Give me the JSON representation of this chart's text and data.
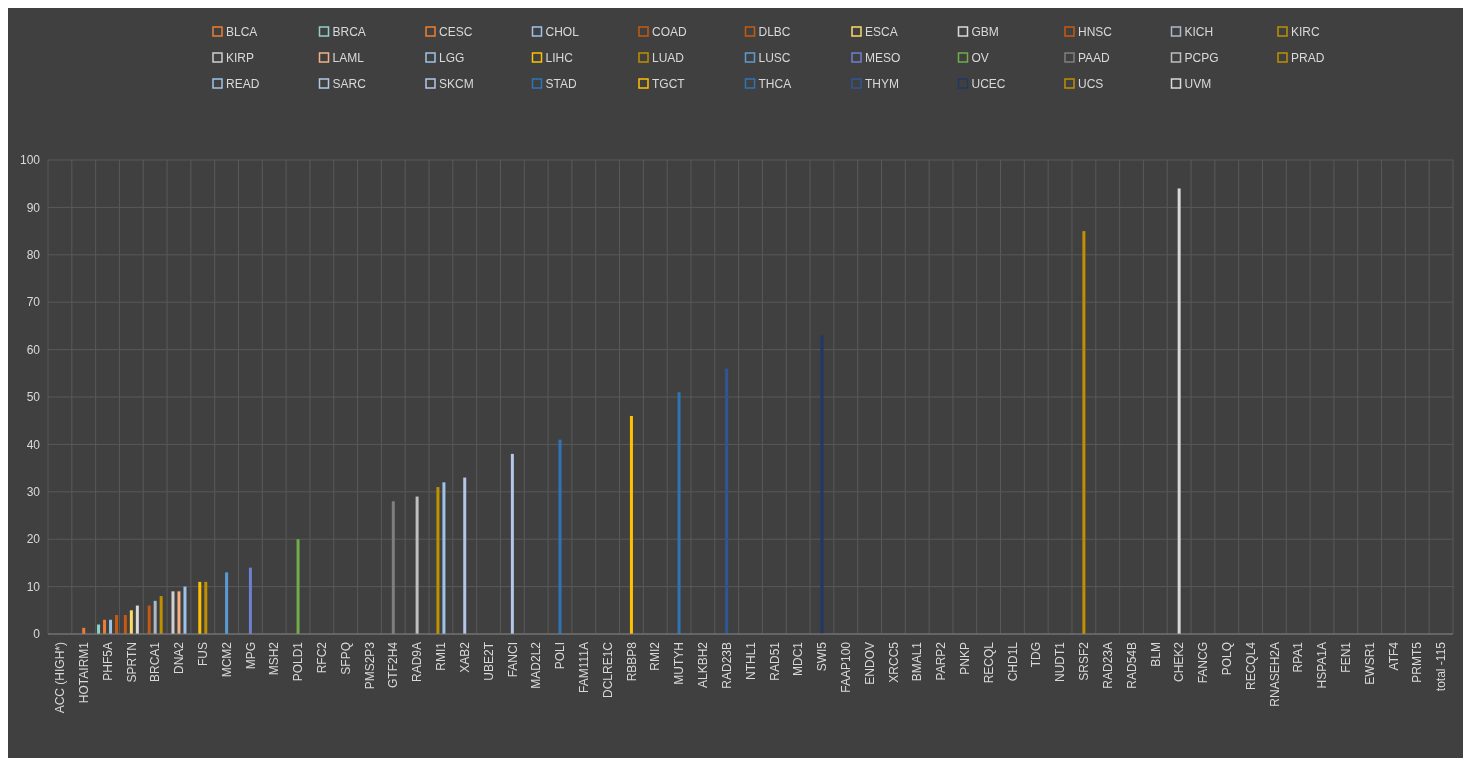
{
  "chart_data": {
    "type": "bar",
    "categories": [
      "ACC (HIGH*)",
      "HOTAIRM1",
      "PHF5A",
      "SPRTN",
      "BRCA1",
      "DNA2",
      "FUS",
      "MCM2",
      "MPG",
      "MSH2",
      "POLD1",
      "RFC2",
      "SFPQ",
      "PMS2P3",
      "GTF2H4",
      "RAD9A",
      "RMI1",
      "XAB2",
      "UBE2T",
      "FANCI",
      "MAD2L2",
      "POLI",
      "FAM111A",
      "DCLRE1C",
      "RBBP8",
      "RMI2",
      "MUTYH",
      "ALKBH2",
      "RAD23B",
      "NTHL1",
      "RAD51",
      "MDC1",
      "SWI5",
      "FAAP100",
      "ENDOV",
      "XRCC5",
      "BMAL1",
      "PARP2",
      "PNKP",
      "RECQL",
      "CHD1L",
      "TDG",
      "NUDT1",
      "SRSF2",
      "RAD23A",
      "RAD54B",
      "BLM",
      "CHEK2",
      "FANCG",
      "POLQ",
      "RECQL4",
      "RNASEH2A",
      "RPA1",
      "HSPA1A",
      "FEN1",
      "EWSR1",
      "ATF4",
      "PRMT5",
      "total -115"
    ],
    "ylim": [
      0,
      100
    ],
    "yticks": [
      0,
      10,
      20,
      30,
      40,
      50,
      60,
      70,
      80,
      90,
      100
    ],
    "grid": true,
    "legend": "top",
    "series": [
      {
        "name": "BLCA",
        "color": "#ed7d31",
        "values": [
          null,
          1.3,
          null,
          null,
          null,
          null,
          null,
          null,
          null,
          null,
          null,
          null,
          null,
          null,
          null,
          null,
          null,
          null,
          null,
          null,
          null,
          null,
          null,
          null,
          null,
          null,
          null,
          null,
          null,
          null,
          null,
          null,
          null,
          null,
          null,
          null,
          null,
          null,
          null,
          null,
          null,
          null,
          null,
          null,
          null,
          null,
          null,
          null,
          null,
          null,
          null,
          null,
          null,
          null,
          null,
          null,
          null,
          null,
          null
        ]
      },
      {
        "name": "BRCA",
        "color": "#8fd0c8",
        "values": [
          null,
          null,
          2,
          null,
          null,
          null,
          null,
          null,
          null,
          null,
          null,
          null,
          null,
          null,
          null,
          null,
          null,
          null,
          null,
          null,
          null,
          null,
          null,
          null,
          null,
          null,
          null,
          null,
          null,
          null,
          null,
          null,
          null,
          null,
          null,
          null,
          null,
          null,
          null,
          null,
          null,
          null,
          null,
          null,
          null,
          null,
          null,
          null,
          null,
          null,
          null,
          null,
          null,
          null,
          null,
          null,
          null,
          null,
          null
        ]
      },
      {
        "name": "CESC",
        "color": "#ed7d31",
        "values": [
          null,
          null,
          3,
          null,
          null,
          null,
          null,
          null,
          null,
          null,
          null,
          null,
          null,
          null,
          null,
          null,
          null,
          null,
          null,
          null,
          null,
          null,
          null,
          null,
          null,
          null,
          null,
          null,
          null,
          null,
          null,
          null,
          null,
          null,
          null,
          null,
          null,
          null,
          null,
          null,
          null,
          null,
          null,
          null,
          null,
          null,
          null,
          null,
          null,
          null,
          null,
          null,
          null,
          null,
          null,
          null,
          null,
          null,
          null
        ]
      },
      {
        "name": "CHOL",
        "color": "#9dc3e6",
        "values": [
          null,
          null,
          3,
          null,
          null,
          null,
          null,
          null,
          null,
          null,
          null,
          null,
          null,
          null,
          null,
          null,
          null,
          null,
          null,
          null,
          null,
          null,
          null,
          null,
          null,
          null,
          null,
          null,
          null,
          null,
          null,
          null,
          null,
          null,
          null,
          null,
          null,
          null,
          null,
          null,
          null,
          null,
          null,
          null,
          null,
          null,
          null,
          null,
          null,
          null,
          null,
          null,
          null,
          null,
          null,
          null,
          null,
          null,
          null
        ]
      },
      {
        "name": "COAD",
        "color": "#c55a11",
        "values": [
          null,
          null,
          4,
          null,
          null,
          null,
          null,
          null,
          null,
          null,
          null,
          null,
          null,
          null,
          null,
          null,
          null,
          null,
          null,
          null,
          null,
          null,
          null,
          null,
          null,
          null,
          null,
          null,
          null,
          null,
          null,
          null,
          null,
          null,
          null,
          null,
          null,
          null,
          null,
          null,
          null,
          null,
          null,
          null,
          null,
          null,
          null,
          null,
          null,
          null,
          null,
          null,
          null,
          null,
          null,
          null,
          null,
          null,
          null
        ]
      },
      {
        "name": "DLBC",
        "color": "#c55a11",
        "values": [
          null,
          null,
          null,
          4,
          null,
          null,
          null,
          null,
          null,
          null,
          null,
          null,
          null,
          null,
          null,
          null,
          null,
          null,
          null,
          null,
          null,
          null,
          null,
          null,
          null,
          null,
          null,
          null,
          null,
          null,
          null,
          null,
          null,
          null,
          null,
          null,
          null,
          null,
          null,
          null,
          null,
          null,
          null,
          null,
          null,
          null,
          null,
          null,
          null,
          null,
          null,
          null,
          null,
          null,
          null,
          null,
          null,
          null,
          null
        ]
      },
      {
        "name": "ESCA",
        "color": "#ffd966",
        "values": [
          null,
          null,
          null,
          5,
          null,
          null,
          null,
          null,
          null,
          null,
          null,
          null,
          null,
          null,
          null,
          null,
          null,
          null,
          null,
          null,
          null,
          null,
          null,
          null,
          null,
          null,
          null,
          null,
          null,
          null,
          null,
          null,
          null,
          null,
          null,
          null,
          null,
          null,
          null,
          null,
          null,
          null,
          null,
          null,
          null,
          null,
          null,
          null,
          null,
          null,
          null,
          null,
          null,
          null,
          null,
          null,
          null,
          null,
          null
        ]
      },
      {
        "name": "GBM",
        "color": "#d9d9d9",
        "values": [
          null,
          null,
          null,
          6,
          null,
          null,
          null,
          null,
          null,
          null,
          null,
          null,
          null,
          null,
          null,
          null,
          null,
          null,
          null,
          null,
          null,
          null,
          null,
          null,
          null,
          null,
          null,
          null,
          null,
          null,
          null,
          null,
          null,
          null,
          null,
          null,
          null,
          null,
          null,
          null,
          null,
          null,
          null,
          null,
          null,
          null,
          null,
          null,
          null,
          null,
          null,
          null,
          null,
          null,
          null,
          null,
          null,
          null,
          null
        ]
      },
      {
        "name": "HNSC",
        "color": "#c55a11",
        "values": [
          null,
          null,
          null,
          null,
          6,
          null,
          null,
          null,
          null,
          null,
          null,
          null,
          null,
          null,
          null,
          null,
          null,
          null,
          null,
          null,
          null,
          null,
          null,
          null,
          null,
          null,
          null,
          null,
          null,
          null,
          null,
          null,
          null,
          null,
          null,
          null,
          null,
          null,
          null,
          null,
          null,
          null,
          null,
          null,
          null,
          null,
          null,
          null,
          null,
          null,
          null,
          null,
          null,
          null,
          null,
          null,
          null,
          null,
          null
        ]
      },
      {
        "name": "KICH",
        "color": "#adb9ca",
        "values": [
          null,
          null,
          null,
          null,
          7,
          null,
          null,
          null,
          null,
          null,
          null,
          null,
          null,
          null,
          null,
          null,
          null,
          null,
          null,
          null,
          null,
          null,
          null,
          null,
          null,
          null,
          null,
          null,
          null,
          null,
          null,
          null,
          null,
          null,
          null,
          null,
          null,
          null,
          null,
          null,
          null,
          null,
          null,
          null,
          null,
          null,
          null,
          null,
          null,
          null,
          null,
          null,
          null,
          null,
          null,
          null,
          null,
          null,
          null
        ]
      },
      {
        "name": "KIRC",
        "color": "#bf9000",
        "values": [
          null,
          null,
          null,
          null,
          8,
          null,
          null,
          null,
          null,
          null,
          null,
          null,
          null,
          null,
          null,
          null,
          null,
          null,
          null,
          null,
          null,
          null,
          null,
          null,
          null,
          null,
          null,
          null,
          null,
          null,
          null,
          null,
          null,
          null,
          null,
          null,
          null,
          null,
          null,
          null,
          null,
          null,
          null,
          null,
          null,
          null,
          null,
          null,
          null,
          null,
          null,
          null,
          null,
          null,
          null,
          null,
          null,
          null,
          null
        ]
      },
      {
        "name": "KIRP",
        "color": "#d0cece",
        "values": [
          null,
          null,
          null,
          null,
          null,
          9,
          null,
          null,
          null,
          null,
          null,
          null,
          null,
          null,
          null,
          null,
          null,
          null,
          null,
          null,
          null,
          null,
          null,
          null,
          null,
          null,
          null,
          null,
          null,
          null,
          null,
          null,
          null,
          null,
          null,
          null,
          null,
          null,
          null,
          null,
          null,
          null,
          null,
          null,
          null,
          null,
          null,
          null,
          null,
          null,
          null,
          null,
          null,
          null,
          null,
          null,
          null,
          null,
          null
        ]
      },
      {
        "name": "LAML",
        "color": "#f4b183",
        "values": [
          null,
          null,
          null,
          null,
          null,
          9,
          null,
          null,
          null,
          null,
          null,
          null,
          null,
          null,
          null,
          null,
          null,
          null,
          null,
          null,
          null,
          null,
          null,
          null,
          null,
          null,
          null,
          null,
          null,
          null,
          null,
          null,
          null,
          null,
          null,
          null,
          null,
          null,
          null,
          null,
          null,
          null,
          null,
          null,
          null,
          null,
          null,
          null,
          null,
          null,
          null,
          null,
          null,
          null,
          null,
          null,
          null,
          null,
          null
        ]
      },
      {
        "name": "LGG",
        "color": "#9dc3e6",
        "values": [
          null,
          null,
          null,
          null,
          null,
          10,
          null,
          null,
          null,
          null,
          null,
          null,
          null,
          null,
          null,
          null,
          null,
          null,
          null,
          null,
          null,
          null,
          null,
          null,
          null,
          null,
          null,
          null,
          null,
          null,
          null,
          null,
          null,
          null,
          null,
          null,
          null,
          null,
          null,
          null,
          null,
          null,
          null,
          null,
          null,
          null,
          null,
          null,
          null,
          null,
          null,
          null,
          null,
          null,
          null,
          null,
          null,
          null,
          null
        ]
      },
      {
        "name": "LIHC",
        "color": "#ffc000",
        "values": [
          null,
          null,
          null,
          null,
          null,
          null,
          11,
          null,
          null,
          null,
          null,
          null,
          null,
          null,
          null,
          null,
          null,
          null,
          null,
          null,
          null,
          null,
          null,
          null,
          null,
          null,
          null,
          null,
          null,
          null,
          null,
          null,
          null,
          null,
          null,
          null,
          null,
          null,
          null,
          null,
          null,
          null,
          null,
          null,
          null,
          null,
          null,
          null,
          null,
          null,
          null,
          null,
          null,
          null,
          null,
          null,
          null,
          null,
          null
        ]
      },
      {
        "name": "LUAD",
        "color": "#bf9000",
        "values": [
          null,
          null,
          null,
          null,
          null,
          null,
          11,
          null,
          null,
          null,
          null,
          null,
          null,
          null,
          null,
          null,
          null,
          null,
          null,
          null,
          null,
          null,
          null,
          null,
          null,
          null,
          null,
          null,
          null,
          null,
          null,
          null,
          null,
          null,
          null,
          null,
          null,
          null,
          null,
          null,
          null,
          null,
          null,
          null,
          null,
          null,
          null,
          null,
          null,
          null,
          null,
          null,
          null,
          null,
          null,
          null,
          null,
          null,
          null
        ]
      },
      {
        "name": "LUSC",
        "color": "#5b9bd5",
        "values": [
          null,
          null,
          null,
          null,
          null,
          null,
          null,
          13,
          null,
          null,
          null,
          null,
          null,
          null,
          null,
          null,
          null,
          null,
          null,
          null,
          null,
          null,
          null,
          null,
          null,
          null,
          null,
          null,
          null,
          null,
          null,
          null,
          null,
          null,
          null,
          null,
          null,
          null,
          null,
          null,
          null,
          null,
          null,
          null,
          null,
          null,
          null,
          null,
          null,
          null,
          null,
          null,
          null,
          null,
          null,
          null,
          null,
          null,
          null
        ]
      },
      {
        "name": "MESO",
        "color": "#6f7fd0",
        "values": [
          null,
          null,
          null,
          null,
          null,
          null,
          null,
          null,
          14,
          null,
          null,
          null,
          null,
          null,
          null,
          null,
          null,
          null,
          null,
          null,
          null,
          null,
          null,
          null,
          null,
          null,
          null,
          null,
          null,
          null,
          null,
          null,
          null,
          null,
          null,
          null,
          null,
          null,
          null,
          null,
          null,
          null,
          null,
          null,
          null,
          null,
          null,
          null,
          null,
          null,
          null,
          null,
          null,
          null,
          null,
          null,
          null,
          null,
          null
        ]
      },
      {
        "name": "OV",
        "color": "#70ad47",
        "values": [
          null,
          null,
          null,
          null,
          null,
          null,
          null,
          null,
          null,
          null,
          20,
          null,
          null,
          null,
          null,
          null,
          null,
          null,
          null,
          null,
          null,
          null,
          null,
          null,
          null,
          null,
          null,
          null,
          null,
          null,
          null,
          null,
          null,
          null,
          null,
          null,
          null,
          null,
          null,
          null,
          null,
          null,
          null,
          null,
          null,
          null,
          null,
          null,
          null,
          null,
          null,
          null,
          null,
          null,
          null,
          null,
          null,
          null,
          null
        ]
      },
      {
        "name": "PAAD",
        "color": "#7f7f7f",
        "values": [
          null,
          null,
          null,
          null,
          null,
          null,
          null,
          null,
          null,
          null,
          null,
          null,
          null,
          null,
          28,
          null,
          null,
          null,
          null,
          null,
          null,
          null,
          null,
          null,
          null,
          null,
          null,
          null,
          null,
          null,
          null,
          null,
          null,
          null,
          null,
          null,
          null,
          null,
          null,
          null,
          null,
          null,
          null,
          null,
          null,
          null,
          null,
          null,
          null,
          null,
          null,
          null,
          null,
          null,
          null,
          null,
          null,
          null,
          null
        ]
      },
      {
        "name": "PCPG",
        "color": "#bfbfbf",
        "values": [
          null,
          null,
          null,
          null,
          null,
          null,
          null,
          null,
          null,
          null,
          null,
          null,
          null,
          null,
          null,
          29,
          null,
          null,
          null,
          null,
          null,
          null,
          null,
          null,
          null,
          null,
          null,
          null,
          null,
          null,
          null,
          null,
          null,
          null,
          null,
          null,
          null,
          null,
          null,
          null,
          null,
          null,
          null,
          null,
          null,
          null,
          null,
          null,
          null,
          null,
          null,
          null,
          null,
          null,
          null,
          null,
          null,
          null,
          null
        ]
      },
      {
        "name": "PRAD",
        "color": "#bf9000",
        "values": [
          null,
          null,
          null,
          null,
          null,
          null,
          null,
          null,
          null,
          null,
          null,
          null,
          null,
          null,
          null,
          null,
          31,
          null,
          null,
          null,
          null,
          null,
          null,
          null,
          null,
          null,
          null,
          null,
          null,
          null,
          null,
          null,
          null,
          null,
          null,
          null,
          null,
          null,
          null,
          null,
          null,
          null,
          null,
          null,
          null,
          null,
          null,
          null,
          null,
          null,
          null,
          null,
          null,
          null,
          null,
          null,
          null,
          null,
          null
        ]
      },
      {
        "name": "READ",
        "color": "#9dc3e6",
        "values": [
          null,
          null,
          null,
          null,
          null,
          null,
          null,
          null,
          null,
          null,
          null,
          null,
          null,
          null,
          null,
          null,
          32,
          null,
          null,
          null,
          null,
          null,
          null,
          null,
          null,
          null,
          null,
          null,
          null,
          null,
          null,
          null,
          null,
          null,
          null,
          null,
          null,
          null,
          null,
          null,
          null,
          null,
          null,
          null,
          null,
          null,
          null,
          null,
          null,
          null,
          null,
          null,
          null,
          null,
          null,
          null,
          null,
          null,
          null
        ]
      },
      {
        "name": "SARC",
        "color": "#b4c7e7",
        "values": [
          null,
          null,
          null,
          null,
          null,
          null,
          null,
          null,
          null,
          null,
          null,
          null,
          null,
          null,
          null,
          null,
          null,
          33,
          null,
          null,
          null,
          null,
          null,
          null,
          null,
          null,
          null,
          null,
          null,
          null,
          null,
          null,
          null,
          null,
          null,
          null,
          null,
          null,
          null,
          null,
          null,
          null,
          null,
          null,
          null,
          null,
          null,
          null,
          null,
          null,
          null,
          null,
          null,
          null,
          null,
          null,
          null,
          null,
          null
        ]
      },
      {
        "name": "SKCM",
        "color": "#b4c7e7",
        "values": [
          null,
          null,
          null,
          null,
          null,
          null,
          null,
          null,
          null,
          null,
          null,
          null,
          null,
          null,
          null,
          null,
          null,
          null,
          null,
          38,
          null,
          null,
          null,
          null,
          null,
          null,
          null,
          null,
          null,
          null,
          null,
          null,
          null,
          null,
          null,
          null,
          null,
          null,
          null,
          null,
          null,
          null,
          null,
          null,
          null,
          null,
          null,
          null,
          null,
          null,
          null,
          null,
          null,
          null,
          null,
          null,
          null,
          null,
          null
        ]
      },
      {
        "name": "STAD",
        "color": "#2e75b6",
        "values": [
          null,
          null,
          null,
          null,
          null,
          null,
          null,
          null,
          null,
          null,
          null,
          null,
          null,
          null,
          null,
          null,
          null,
          null,
          null,
          null,
          null,
          41,
          null,
          null,
          null,
          null,
          null,
          null,
          null,
          null,
          null,
          null,
          null,
          null,
          null,
          null,
          null,
          null,
          null,
          null,
          null,
          null,
          null,
          null,
          null,
          null,
          null,
          null,
          null,
          null,
          null,
          null,
          null,
          null,
          null,
          null,
          null,
          null,
          null
        ]
      },
      {
        "name": "TGCT",
        "color": "#ffc000",
        "values": [
          null,
          null,
          null,
          null,
          null,
          null,
          null,
          null,
          null,
          null,
          null,
          null,
          null,
          null,
          null,
          null,
          null,
          null,
          null,
          null,
          null,
          null,
          null,
          null,
          46,
          null,
          null,
          null,
          null,
          null,
          null,
          null,
          null,
          null,
          null,
          null,
          null,
          null,
          null,
          null,
          null,
          null,
          null,
          null,
          null,
          null,
          null,
          null,
          null,
          null,
          null,
          null,
          null,
          null,
          null,
          null,
          null,
          null,
          null
        ]
      },
      {
        "name": "THCA",
        "color": "#2e75b6",
        "values": [
          null,
          null,
          null,
          null,
          null,
          null,
          null,
          null,
          null,
          null,
          null,
          null,
          null,
          null,
          null,
          null,
          null,
          null,
          null,
          null,
          null,
          null,
          null,
          null,
          null,
          null,
          51,
          null,
          null,
          null,
          null,
          null,
          null,
          null,
          null,
          null,
          null,
          null,
          null,
          null,
          null,
          null,
          null,
          null,
          null,
          null,
          null,
          null,
          null,
          null,
          null,
          null,
          null,
          null,
          null,
          null,
          null,
          null,
          null
        ]
      },
      {
        "name": "THYM",
        "color": "#2f5597",
        "values": [
          null,
          null,
          null,
          null,
          null,
          null,
          null,
          null,
          null,
          null,
          null,
          null,
          null,
          null,
          null,
          null,
          null,
          null,
          null,
          null,
          null,
          null,
          null,
          null,
          null,
          null,
          null,
          null,
          56,
          null,
          null,
          null,
          null,
          null,
          null,
          null,
          null,
          null,
          null,
          null,
          null,
          null,
          null,
          null,
          null,
          null,
          null,
          null,
          null,
          null,
          null,
          null,
          null,
          null,
          null,
          null,
          null,
          null,
          null
        ]
      },
      {
        "name": "UCEC",
        "color": "#203864",
        "values": [
          null,
          null,
          null,
          null,
          null,
          null,
          null,
          null,
          null,
          null,
          null,
          null,
          null,
          null,
          null,
          null,
          null,
          null,
          null,
          null,
          null,
          null,
          null,
          null,
          null,
          null,
          null,
          null,
          null,
          null,
          null,
          null,
          63,
          null,
          null,
          null,
          null,
          null,
          null,
          null,
          null,
          null,
          null,
          null,
          null,
          null,
          null,
          null,
          null,
          null,
          null,
          null,
          null,
          null,
          null,
          null,
          null,
          null,
          null
        ]
      },
      {
        "name": "UCS",
        "color": "#bf9000",
        "values": [
          null,
          null,
          null,
          null,
          null,
          null,
          null,
          null,
          null,
          null,
          null,
          null,
          null,
          null,
          null,
          null,
          null,
          null,
          null,
          null,
          null,
          null,
          null,
          null,
          null,
          null,
          null,
          null,
          null,
          null,
          null,
          null,
          null,
          null,
          null,
          null,
          null,
          null,
          null,
          null,
          null,
          null,
          null,
          85,
          null,
          null,
          null,
          null,
          null,
          null,
          null,
          null,
          null,
          null,
          null,
          null,
          null,
          null,
          null
        ]
      },
      {
        "name": "UVM",
        "color": "#d9d9d9",
        "values": [
          null,
          null,
          null,
          null,
          null,
          null,
          null,
          null,
          null,
          null,
          null,
          null,
          null,
          null,
          null,
          null,
          null,
          null,
          null,
          null,
          null,
          null,
          null,
          null,
          null,
          null,
          null,
          null,
          null,
          null,
          null,
          null,
          null,
          null,
          null,
          null,
          null,
          null,
          null,
          null,
          null,
          null,
          null,
          null,
          null,
          null,
          null,
          94,
          null,
          null,
          null,
          null,
          null,
          null,
          null,
          null,
          null,
          null,
          null
        ]
      }
    ]
  }
}
